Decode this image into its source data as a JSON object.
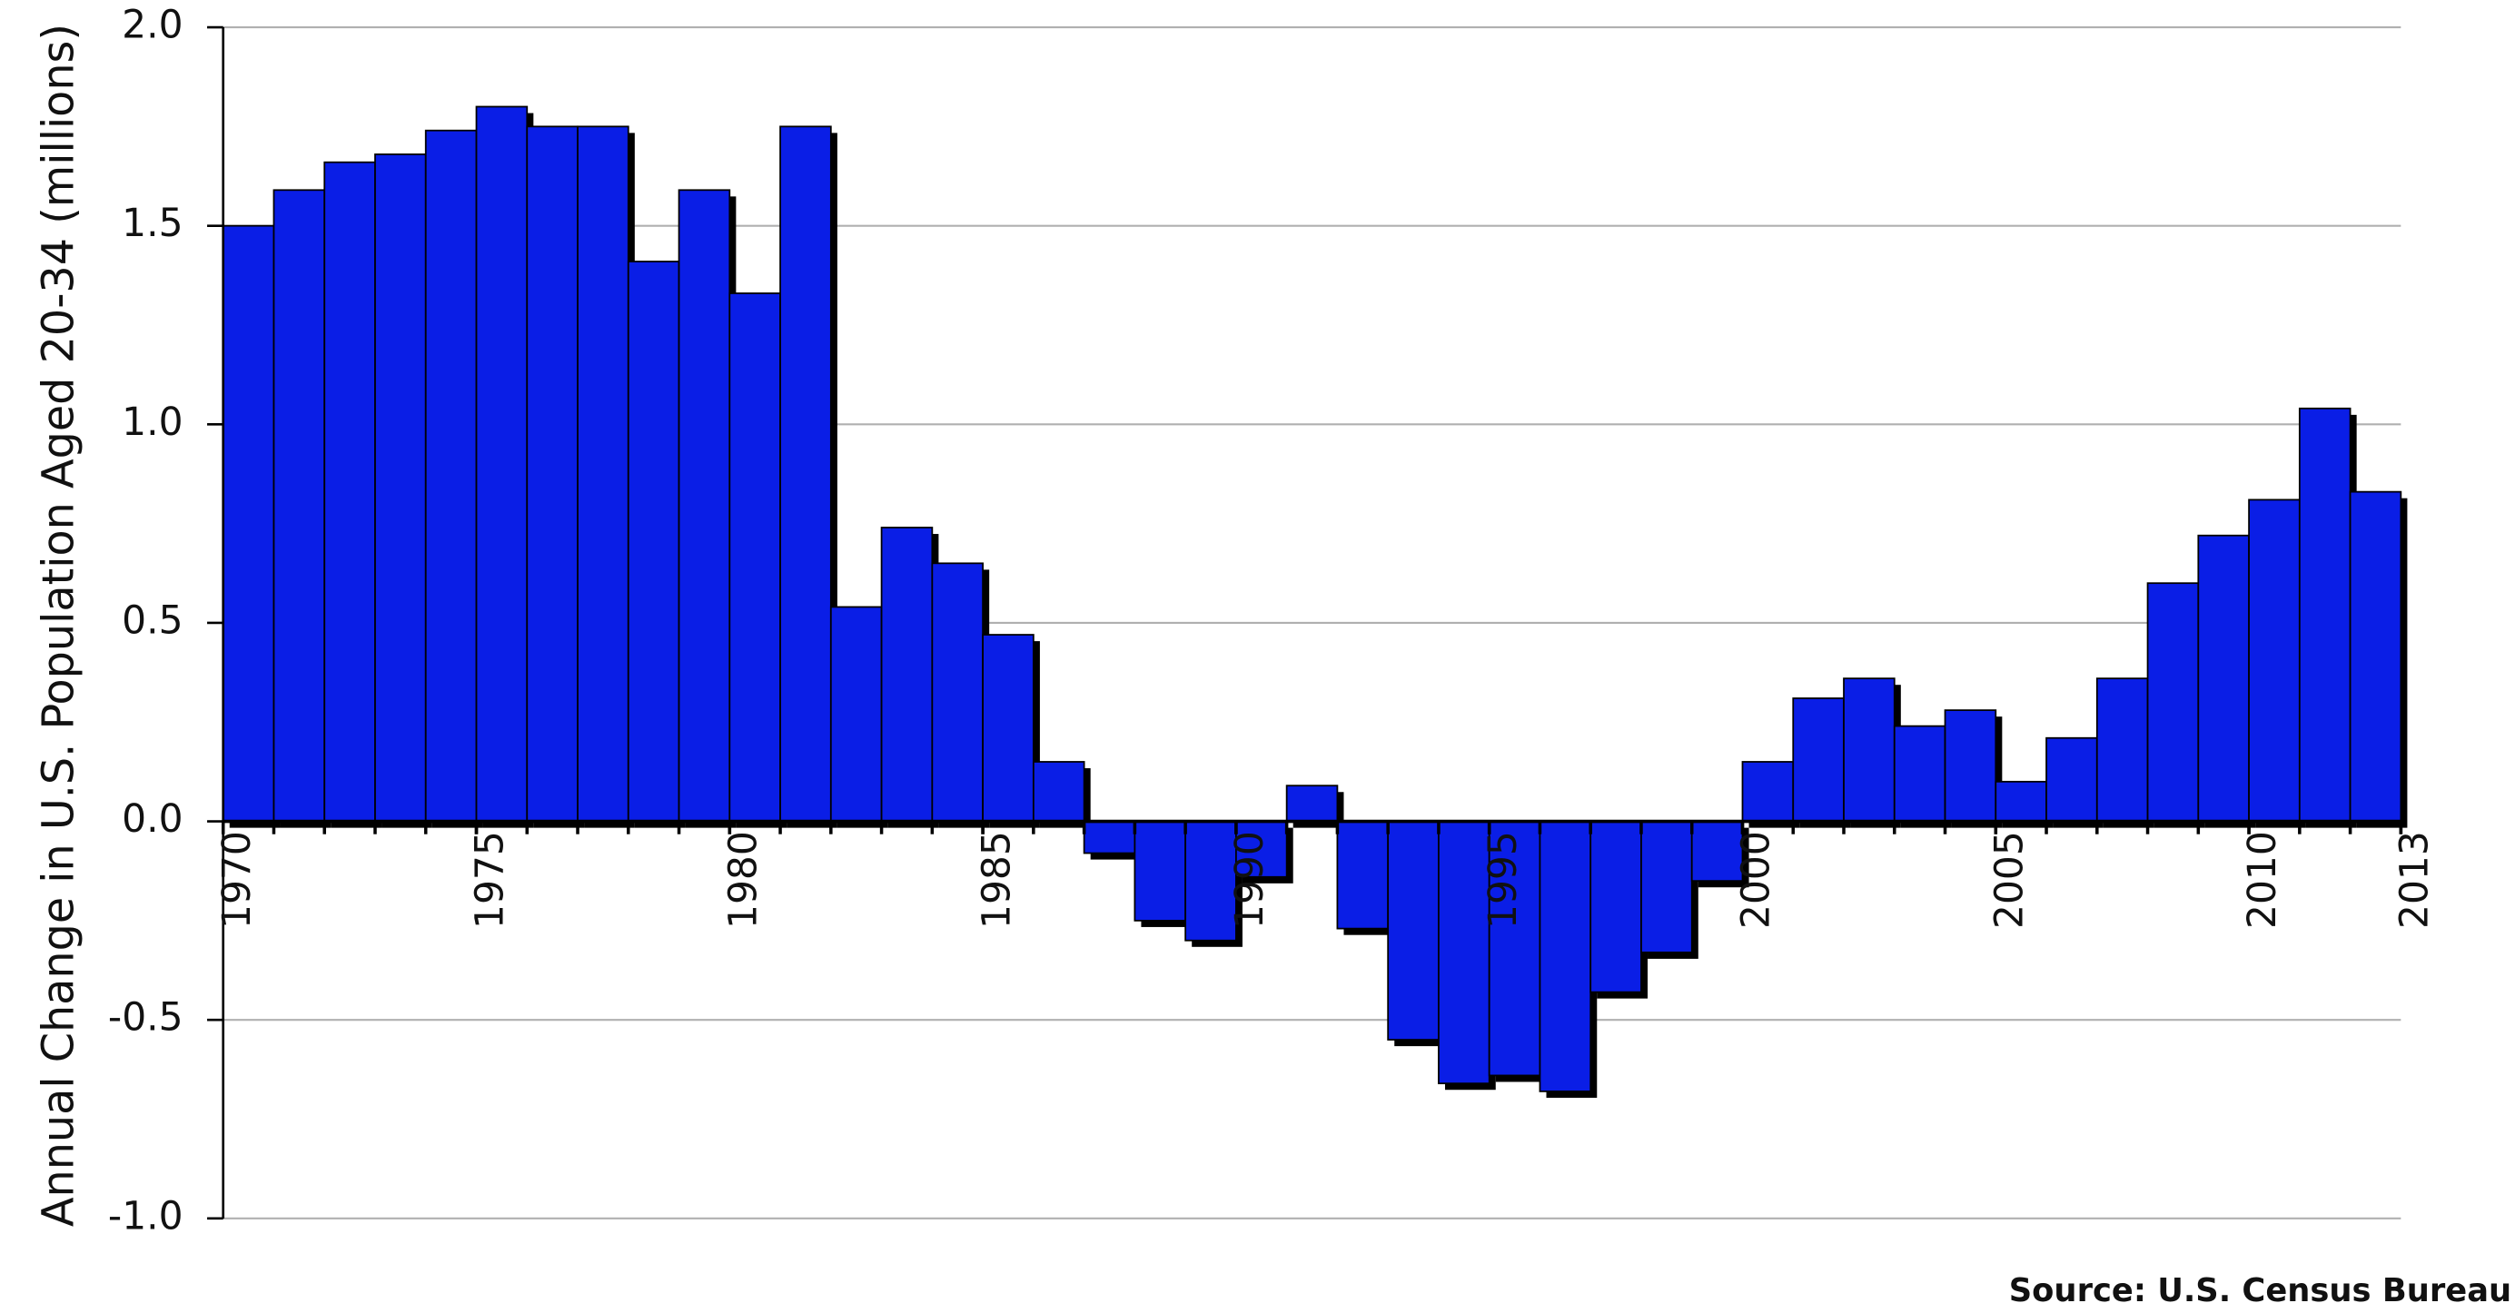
{
  "chart_data": {
    "type": "bar",
    "y_label": "Annual Change in U.S. Population Aged 20-34 (millions)",
    "source": "Source:  U.S. Census Bureau",
    "x": [
      1970,
      1971,
      1972,
      1973,
      1974,
      1975,
      1976,
      1977,
      1978,
      1979,
      1980,
      1981,
      1982,
      1983,
      1984,
      1985,
      1986,
      1987,
      1988,
      1989,
      1990,
      1991,
      1992,
      1993,
      1994,
      1995,
      1996,
      1997,
      1998,
      1999,
      2000,
      2001,
      2002,
      2003,
      2004,
      2005,
      2006,
      2007,
      2008,
      2009,
      2010,
      2011,
      2012
    ],
    "values": [
      1.5,
      1.59,
      1.66,
      1.68,
      1.74,
      1.8,
      1.75,
      1.75,
      1.41,
      1.59,
      1.33,
      1.75,
      0.54,
      0.74,
      0.65,
      0.47,
      0.15,
      -0.08,
      -0.25,
      -0.3,
      -0.14,
      0.09,
      -0.27,
      -0.55,
      -0.66,
      -0.64,
      -0.68,
      -0.43,
      -0.33,
      -0.15,
      0.15,
      0.31,
      0.36,
      0.24,
      0.28,
      0.1,
      0.21,
      0.36,
      0.6,
      0.72,
      0.81,
      1.04,
      0.83
    ],
    "color": "#0a1ee6",
    "xlim": [
      1970,
      2013
    ],
    "xticks": [
      1970,
      1975,
      1980,
      1985,
      1990,
      1995,
      2000,
      2005,
      2010,
      2013
    ],
    "ylim": [
      -1.0,
      2.0
    ],
    "yticks": [
      {
        "value": 2.0,
        "label": "2.0"
      },
      1.5,
      {
        "value": 1.0,
        "label": "1.0"
      },
      0.5,
      {
        "value": 0.0,
        "label": "0.0"
      },
      -0.5,
      {
        "value": -1.0,
        "label": "-1.0"
      }
    ],
    "grid": true
  }
}
